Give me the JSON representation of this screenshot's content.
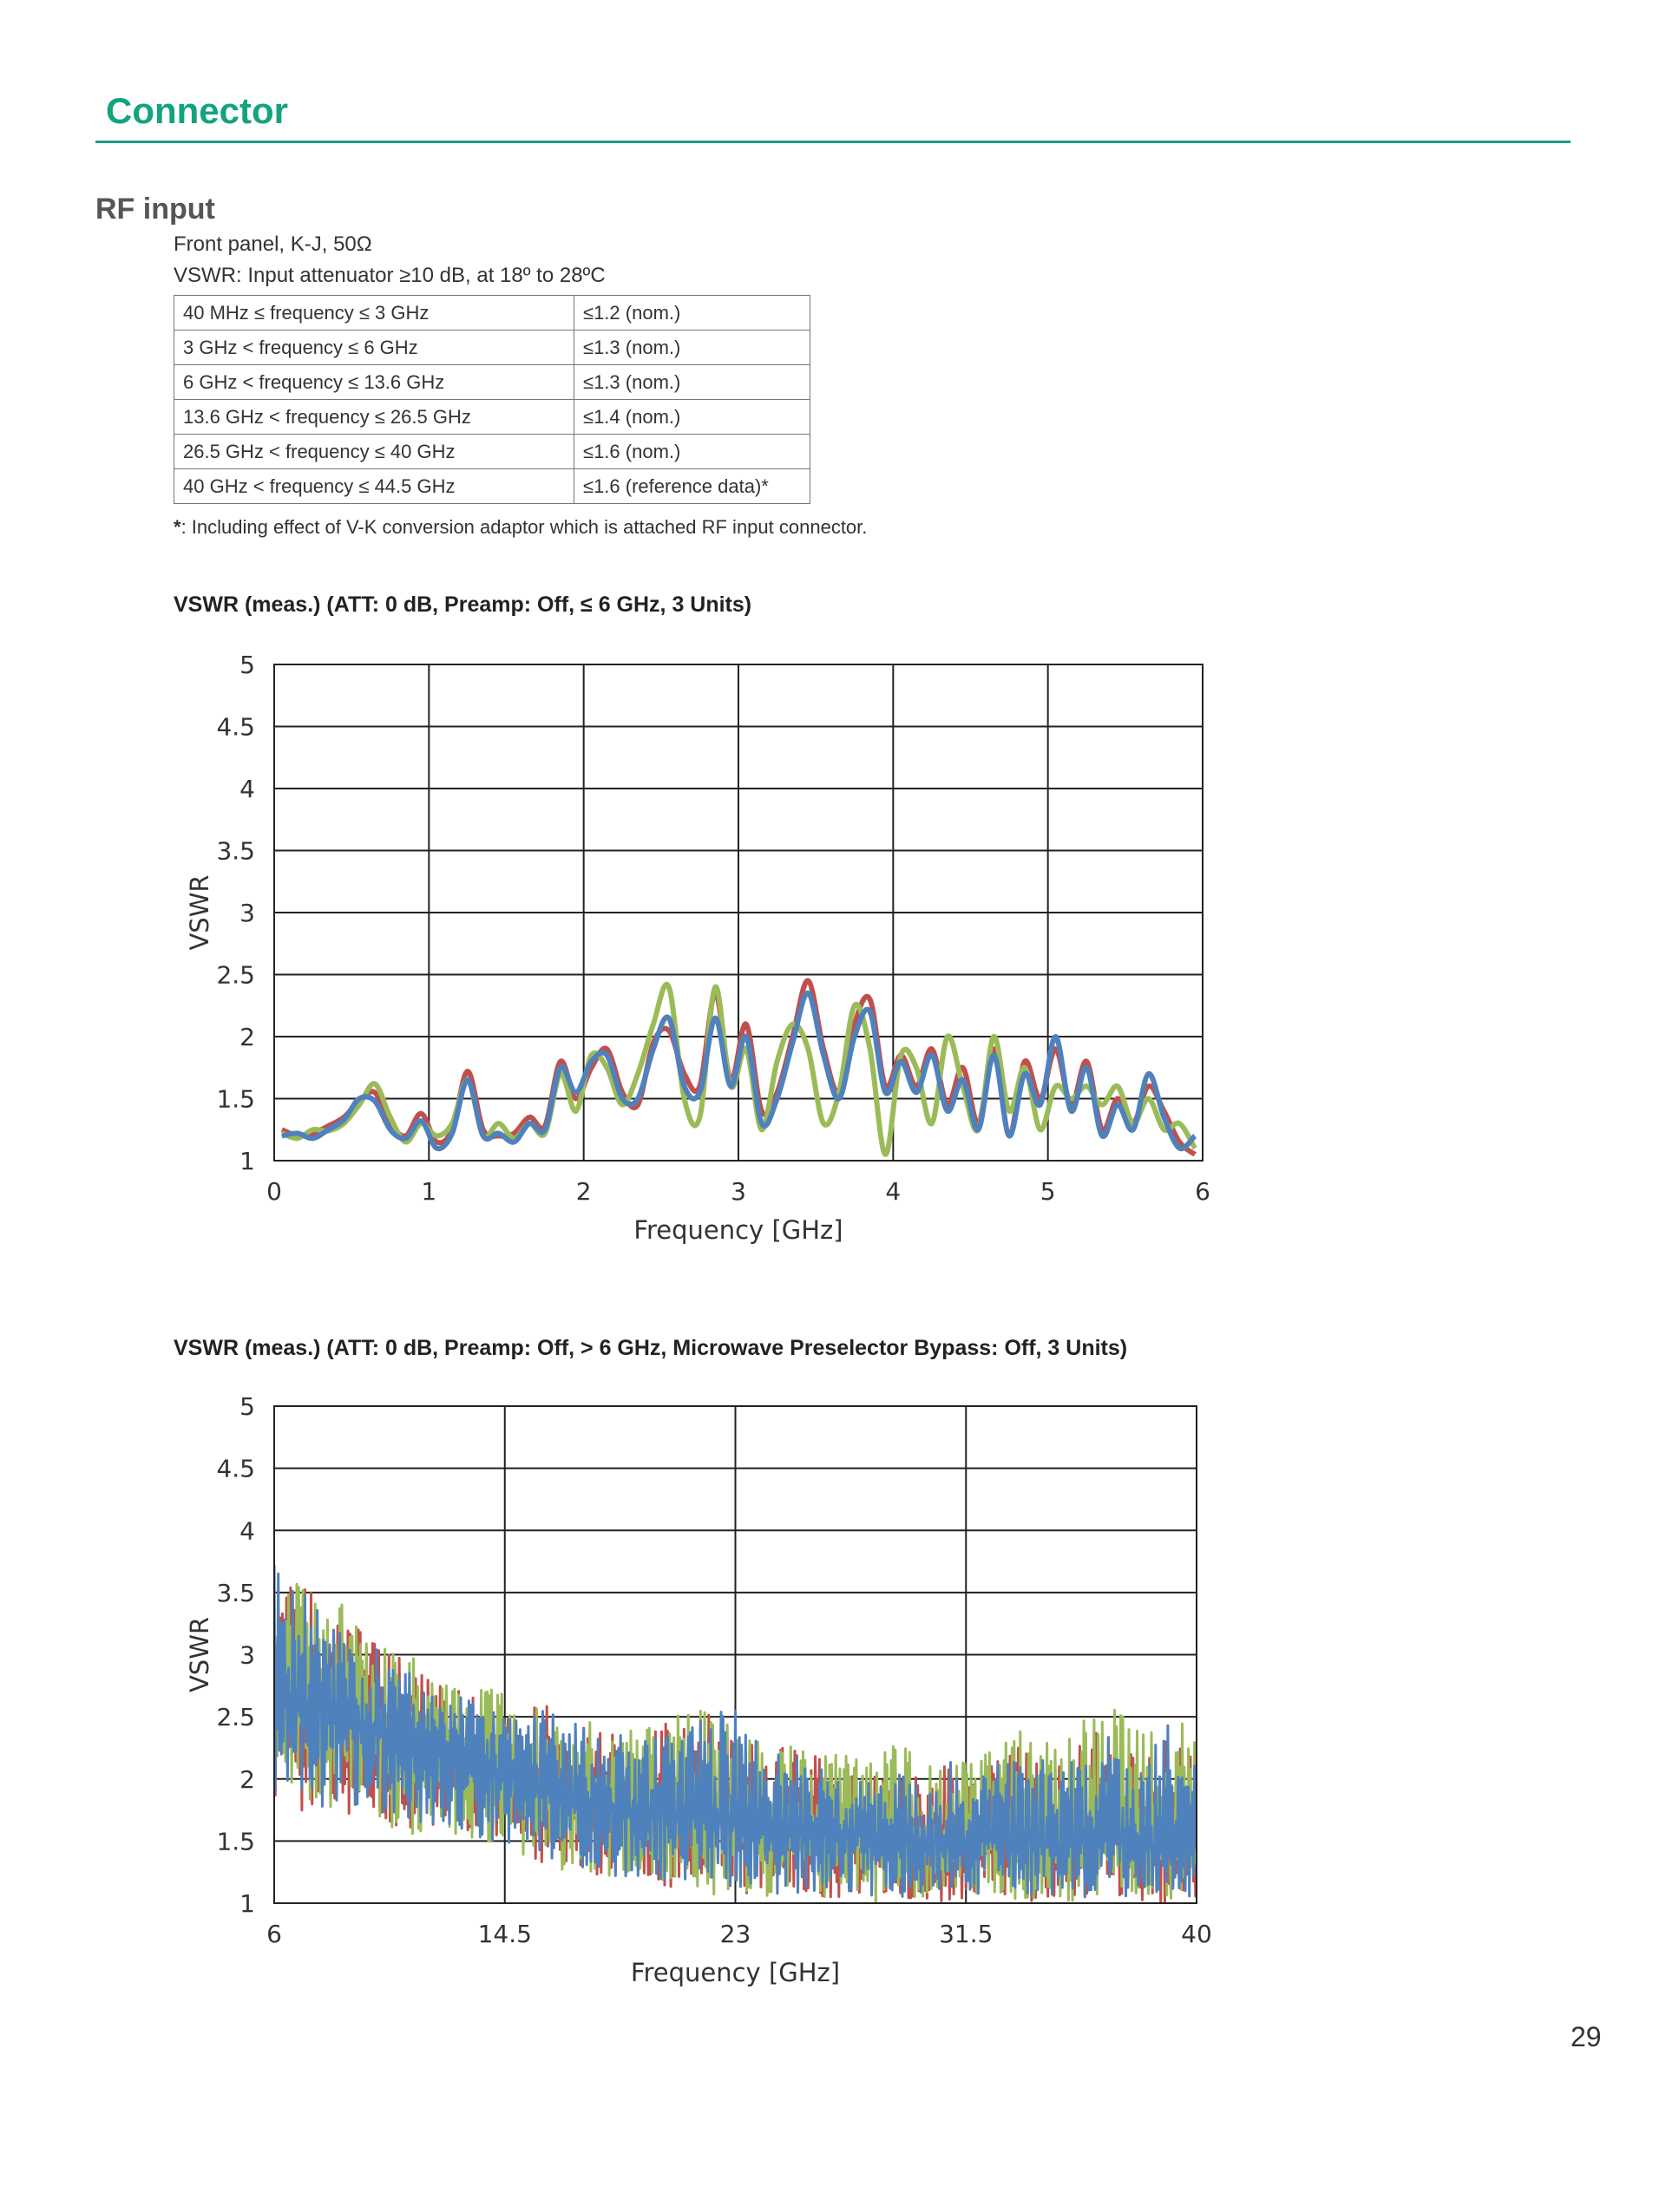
{
  "header": {
    "section_title": "Connector"
  },
  "rf_input": {
    "title": "RF input",
    "line1": "Front panel, K-J, 50Ω",
    "line2": "VSWR: Input attenuator ≥10 dB, at 18º to 28ºC",
    "table": [
      {
        "range": "40 MHz ≤ frequency ≤ 3 GHz",
        "value": "≤1.2 (nom.)"
      },
      {
        "range": "3 GHz < frequency ≤ 6 GHz",
        "value": "≤1.3 (nom.)"
      },
      {
        "range": "6 GHz < frequency ≤ 13.6 GHz",
        "value": "≤1.3 (nom.)"
      },
      {
        "range": "13.6 GHz < frequency ≤ 26.5 GHz",
        "value": "≤1.4 (nom.)"
      },
      {
        "range": "26.5 GHz < frequency ≤ 40 GHz",
        "value": "≤1.6 (nom.)"
      },
      {
        "range": "40 GHz < frequency ≤ 44.5 GHz",
        "value": "≤1.6 (reference data)*"
      }
    ],
    "footnote_mark": "*",
    "footnote_text": ": Including effect of V-K conversion adaptor which is attached RF input connector."
  },
  "colors": {
    "accent": "#12a37f",
    "series_red": "#c0504d",
    "series_green": "#9bbb59",
    "series_blue": "#4f81bd"
  },
  "chart_data": [
    {
      "type": "line",
      "title": "VSWR (meas.) (ATT: 0 dB, Preamp: Off, ≤ 6 GHz, 3 Units)",
      "xlabel": "Frequency [GHz]",
      "ylabel": "VSWR",
      "xlim": [
        0,
        6
      ],
      "ylim": [
        1,
        5
      ],
      "xticks": [
        "0",
        "1",
        "2",
        "3",
        "4",
        "5",
        "6"
      ],
      "yticks": [
        "1",
        "1.5",
        "2",
        "2.5",
        "3",
        "3.5",
        "4",
        "4.5",
        "5"
      ],
      "grid": true,
      "legend": "none",
      "series": [
        {
          "color": "#c0504d",
          "x": [
            0.05,
            0.15,
            0.25,
            0.35,
            0.45,
            0.55,
            0.65,
            0.75,
            0.85,
            0.95,
            1.05,
            1.15,
            1.25,
            1.35,
            1.45,
            1.55,
            1.65,
            1.75,
            1.85,
            1.95,
            2.05,
            2.15,
            2.25,
            2.35,
            2.45,
            2.55,
            2.65,
            2.75,
            2.85,
            2.95,
            3.05,
            3.15,
            3.25,
            3.35,
            3.45,
            3.55,
            3.65,
            3.75,
            3.85,
            3.95,
            4.05,
            4.15,
            4.25,
            4.35,
            4.45,
            4.55,
            4.65,
            4.75,
            4.85,
            4.95,
            5.05,
            5.15,
            5.25,
            5.35,
            5.45,
            5.55,
            5.65,
            5.75,
            5.85,
            5.95
          ],
          "y": [
            1.25,
            1.2,
            1.22,
            1.28,
            1.35,
            1.48,
            1.55,
            1.3,
            1.2,
            1.38,
            1.15,
            1.25,
            1.72,
            1.25,
            1.2,
            1.22,
            1.35,
            1.28,
            1.8,
            1.5,
            1.75,
            1.9,
            1.55,
            1.45,
            1.95,
            2.05,
            1.7,
            1.6,
            2.35,
            1.65,
            2.1,
            1.4,
            1.55,
            2.0,
            2.45,
            1.9,
            1.55,
            2.1,
            2.3,
            1.6,
            1.85,
            1.6,
            1.9,
            1.45,
            1.75,
            1.3,
            1.9,
            1.2,
            1.8,
            1.5,
            1.9,
            1.45,
            1.8,
            1.25,
            1.5,
            1.3,
            1.6,
            1.4,
            1.15,
            1.05
          ]
        },
        {
          "color": "#9bbb59",
          "x": [
            0.05,
            0.15,
            0.25,
            0.35,
            0.45,
            0.55,
            0.65,
            0.75,
            0.85,
            0.95,
            1.05,
            1.15,
            1.25,
            1.35,
            1.45,
            1.55,
            1.65,
            1.75,
            1.85,
            1.95,
            2.05,
            2.15,
            2.25,
            2.35,
            2.45,
            2.55,
            2.65,
            2.75,
            2.85,
            2.95,
            3.05,
            3.15,
            3.25,
            3.35,
            3.45,
            3.55,
            3.65,
            3.75,
            3.85,
            3.95,
            4.05,
            4.15,
            4.25,
            4.35,
            4.45,
            4.55,
            4.65,
            4.75,
            4.85,
            4.95,
            5.05,
            5.15,
            5.25,
            5.35,
            5.45,
            5.55,
            5.65,
            5.75,
            5.85,
            5.95
          ],
          "y": [
            1.22,
            1.18,
            1.25,
            1.24,
            1.3,
            1.45,
            1.62,
            1.35,
            1.15,
            1.3,
            1.2,
            1.3,
            1.65,
            1.2,
            1.3,
            1.18,
            1.3,
            1.22,
            1.7,
            1.4,
            1.85,
            1.75,
            1.45,
            1.7,
            2.1,
            2.4,
            1.5,
            1.35,
            2.4,
            1.6,
            1.9,
            1.25,
            1.8,
            2.1,
            1.9,
            1.3,
            1.55,
            2.25,
            1.9,
            1.05,
            1.85,
            1.75,
            1.3,
            2.0,
            1.6,
            1.25,
            2.0,
            1.4,
            1.75,
            1.25,
            1.6,
            1.5,
            1.6,
            1.45,
            1.6,
            1.3,
            1.5,
            1.25,
            1.3,
            1.1
          ]
        },
        {
          "color": "#4f81bd",
          "x": [
            0.05,
            0.15,
            0.25,
            0.35,
            0.45,
            0.55,
            0.65,
            0.75,
            0.85,
            0.95,
            1.05,
            1.15,
            1.25,
            1.35,
            1.45,
            1.55,
            1.65,
            1.75,
            1.85,
            1.95,
            2.05,
            2.15,
            2.25,
            2.35,
            2.45,
            2.55,
            2.65,
            2.75,
            2.85,
            2.95,
            3.05,
            3.15,
            3.25,
            3.35,
            3.45,
            3.55,
            3.65,
            3.75,
            3.85,
            3.95,
            4.05,
            4.15,
            4.25,
            4.35,
            4.45,
            4.55,
            4.65,
            4.75,
            4.85,
            4.95,
            5.05,
            5.15,
            5.25,
            5.35,
            5.45,
            5.55,
            5.65,
            5.75,
            5.85,
            5.95
          ],
          "y": [
            1.2,
            1.22,
            1.18,
            1.25,
            1.33,
            1.5,
            1.48,
            1.25,
            1.18,
            1.32,
            1.1,
            1.22,
            1.65,
            1.2,
            1.22,
            1.15,
            1.3,
            1.25,
            1.75,
            1.55,
            1.8,
            1.85,
            1.5,
            1.5,
            1.9,
            2.15,
            1.6,
            1.55,
            2.15,
            1.6,
            2.0,
            1.3,
            1.5,
            1.95,
            2.35,
            1.85,
            1.5,
            2.0,
            2.2,
            1.55,
            1.8,
            1.55,
            1.85,
            1.4,
            1.65,
            1.25,
            1.85,
            1.2,
            1.7,
            1.45,
            2.0,
            1.4,
            1.75,
            1.2,
            1.45,
            1.25,
            1.7,
            1.35,
            1.1,
            1.2
          ]
        }
      ]
    },
    {
      "type": "line",
      "title": "VSWR (meas.) (ATT: 0 dB, Preamp: Off, > 6 GHz, Microwave Preselector Bypass: Off, 3 Units)",
      "xlabel": "Frequency [GHz]",
      "ylabel": "VSWR",
      "xlim": [
        6,
        40
      ],
      "ylim": [
        1,
        5
      ],
      "xticks": [
        "6",
        "14.5",
        "23",
        "31.5",
        "40"
      ],
      "yticks": [
        "1",
        "1.5",
        "2",
        "2.5",
        "3",
        "3.5",
        "4",
        "4.5",
        "5"
      ],
      "grid": true,
      "legend": "none",
      "series": [
        {
          "color": "#c0504d",
          "x": [
            6,
            7,
            8,
            9,
            10,
            11,
            12,
            13,
            14,
            15,
            16,
            17,
            18,
            19,
            20,
            21,
            22,
            23,
            24,
            25,
            26,
            27,
            28,
            29,
            30,
            31,
            32,
            33,
            34,
            35,
            36,
            37,
            38,
            39,
            40
          ],
          "y": [
            2.7,
            2.6,
            2.55,
            2.45,
            2.4,
            2.3,
            2.25,
            2.15,
            2.1,
            2.0,
            1.95,
            1.85,
            1.8,
            1.75,
            1.75,
            1.7,
            1.7,
            1.75,
            1.65,
            1.6,
            1.6,
            1.55,
            1.55,
            1.5,
            1.5,
            1.45,
            1.5,
            1.55,
            1.5,
            1.45,
            1.5,
            1.55,
            1.5,
            1.5,
            1.45
          ],
          "min": [
            1.8,
            1.75,
            1.7,
            1.7,
            1.65,
            1.6,
            1.55,
            1.5,
            1.5,
            1.4,
            1.3,
            1.25,
            1.2,
            1.15,
            1.15,
            1.1,
            1.1,
            1.05,
            1.05,
            1.05,
            1.05,
            1.05,
            1.05,
            1.05,
            1.0,
            1.0,
            1.05,
            1.05,
            1.0,
            1.0,
            1.05,
            1.05,
            1.0,
            1.0,
            1.05
          ],
          "max": [
            3.7,
            3.55,
            3.45,
            3.3,
            3.05,
            2.95,
            2.8,
            2.7,
            2.6,
            2.55,
            2.6,
            2.5,
            2.45,
            2.4,
            2.45,
            2.5,
            2.55,
            2.4,
            2.3,
            2.25,
            2.2,
            2.1,
            2.05,
            2.1,
            2.0,
            2.2,
            2.05,
            2.3,
            2.25,
            2.1,
            2.35,
            2.45,
            2.2,
            2.4,
            2.2
          ]
        },
        {
          "color": "#9bbb59",
          "x": [
            6,
            7,
            8,
            9,
            10,
            11,
            12,
            13,
            14,
            15,
            16,
            17,
            18,
            19,
            20,
            21,
            22,
            23,
            24,
            25,
            26,
            27,
            28,
            29,
            30,
            31,
            32,
            33,
            34,
            35,
            36,
            37,
            38,
            39,
            40
          ],
          "y": [
            2.75,
            2.65,
            2.6,
            2.5,
            2.4,
            2.35,
            2.25,
            2.2,
            2.1,
            2.0,
            1.95,
            1.85,
            1.8,
            1.8,
            1.75,
            1.75,
            1.7,
            1.7,
            1.65,
            1.65,
            1.6,
            1.6,
            1.55,
            1.55,
            1.5,
            1.5,
            1.5,
            1.55,
            1.5,
            1.5,
            1.55,
            1.55,
            1.5,
            1.5,
            1.5
          ],
          "min": [
            1.75,
            1.75,
            1.7,
            1.65,
            1.6,
            1.55,
            1.55,
            1.5,
            1.45,
            1.35,
            1.3,
            1.25,
            1.2,
            1.15,
            1.15,
            1.1,
            1.05,
            1.05,
            1.05,
            1.05,
            1.05,
            1.05,
            1.0,
            1.0,
            1.05,
            1.0,
            1.05,
            1.05,
            1.0,
            1.0,
            1.05,
            1.05,
            1.0,
            1.0,
            1.05
          ],
          "max": [
            3.65,
            3.6,
            3.65,
            3.3,
            3.1,
            3.0,
            2.85,
            2.8,
            2.75,
            2.6,
            2.55,
            2.55,
            2.45,
            2.5,
            2.4,
            2.55,
            2.6,
            2.45,
            2.35,
            2.3,
            2.3,
            2.2,
            2.15,
            2.3,
            2.1,
            2.25,
            2.15,
            2.6,
            2.3,
            2.35,
            2.5,
            2.6,
            2.35,
            2.55,
            2.4
          ]
        },
        {
          "color": "#4f81bd",
          "x": [
            6,
            7,
            8,
            9,
            10,
            11,
            12,
            13,
            14,
            15,
            16,
            17,
            18,
            19,
            20,
            21,
            22,
            23,
            24,
            25,
            26,
            27,
            28,
            29,
            30,
            31,
            32,
            33,
            34,
            35,
            36,
            37,
            38,
            39,
            40
          ],
          "y": [
            2.7,
            2.6,
            2.55,
            2.45,
            2.4,
            2.3,
            2.25,
            2.15,
            2.1,
            2.0,
            1.95,
            1.85,
            1.8,
            1.75,
            1.75,
            1.7,
            1.7,
            1.7,
            1.65,
            1.6,
            1.6,
            1.55,
            1.55,
            1.5,
            1.5,
            1.5,
            1.5,
            1.5,
            1.5,
            1.45,
            1.5,
            1.5,
            1.5,
            1.45,
            1.45
          ],
          "min": [
            1.85,
            1.8,
            1.75,
            1.7,
            1.7,
            1.65,
            1.6,
            1.55,
            1.5,
            1.45,
            1.35,
            1.3,
            1.25,
            1.2,
            1.2,
            1.15,
            1.1,
            1.1,
            1.1,
            1.05,
            1.05,
            1.05,
            1.05,
            1.05,
            1.05,
            1.05,
            1.05,
            1.05,
            1.05,
            1.05,
            1.05,
            1.05,
            1.05,
            1.05,
            1.05
          ],
          "max": [
            3.75,
            3.5,
            3.4,
            3.25,
            3.0,
            2.9,
            2.75,
            2.65,
            2.55,
            2.5,
            2.55,
            2.45,
            2.4,
            2.35,
            2.4,
            2.45,
            2.5,
            2.6,
            2.25,
            2.2,
            2.15,
            2.05,
            2.0,
            2.05,
            1.95,
            2.15,
            2.0,
            2.2,
            2.2,
            2.05,
            2.3,
            2.4,
            2.15,
            2.45,
            2.15
          ]
        }
      ]
    }
  ],
  "footer": {
    "page_number": "29"
  }
}
